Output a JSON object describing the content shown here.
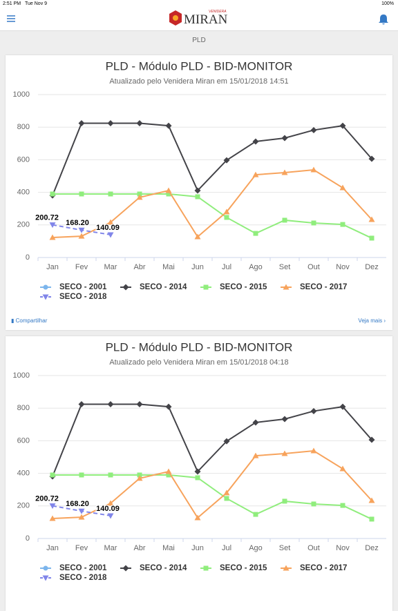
{
  "status_bar": {
    "time": "2:51 PM",
    "date": "Tue Nov 9",
    "battery": "100%"
  },
  "header": {
    "brand": "MIRAN",
    "brand_top": "VENIDERA"
  },
  "section": "PLD",
  "card_footer": {
    "share": "Compartilhar",
    "more": "Veja mais"
  },
  "chart_data": [
    {
      "type": "line",
      "title": "PLD - Módulo PLD - BID-MONITOR",
      "subtitle": "Atualizado pelo Venidera Miran em 15/01/2018 14:51",
      "categories": [
        "Jan",
        "Fev",
        "Mar",
        "Abr",
        "Mai",
        "Jun",
        "Jul",
        "Ago",
        "Set",
        "Out",
        "Nov",
        "Dez"
      ],
      "ylim": [
        0,
        1000
      ],
      "yticks": [
        0,
        200,
        400,
        600,
        800,
        1000
      ],
      "grid": true,
      "series": [
        {
          "name": "SECO - 2001",
          "color": "#7cb5ec",
          "marker": "circle",
          "values": [
            null,
            null,
            null,
            null,
            null,
            null,
            null,
            null,
            null,
            null,
            null,
            null
          ]
        },
        {
          "name": "SECO - 2014",
          "color": "#434348",
          "marker": "diamond",
          "values": [
            381,
            824,
            824,
            824,
            809,
            411,
            597,
            712,
            733,
            782,
            809,
            606
          ]
        },
        {
          "name": "SECO - 2015",
          "color": "#90ed7d",
          "marker": "square",
          "values": [
            390,
            390,
            390,
            390,
            390,
            373,
            246,
            148,
            229,
            212,
            203,
            119
          ]
        },
        {
          "name": "SECO - 2017",
          "color": "#f7a35c",
          "marker": "triangle",
          "values": [
            123,
            131,
            216,
            369,
            411,
            127,
            280,
            508,
            521,
            538,
            428,
            233
          ]
        },
        {
          "name": "SECO - 2018",
          "color": "#8085e9",
          "marker": "triangle-down",
          "dash": true,
          "values": [
            200.72,
            168.2,
            140.09,
            null,
            null,
            null,
            null,
            null,
            null,
            null,
            null,
            null
          ],
          "value_labels": [
            "200.72",
            "168.20",
            "140.09",
            null,
            null,
            null,
            null,
            null,
            null,
            null,
            null,
            null
          ]
        }
      ]
    },
    {
      "type": "line",
      "title": "PLD - Módulo PLD - BID-MONITOR",
      "subtitle": "Atualizado pelo Venidera Miran em 15/01/2018 04:18",
      "categories": [
        "Jan",
        "Fev",
        "Mar",
        "Abr",
        "Mai",
        "Jun",
        "Jul",
        "Ago",
        "Set",
        "Out",
        "Nov",
        "Dez"
      ],
      "ylim": [
        0,
        1000
      ],
      "yticks": [
        0,
        200,
        400,
        600,
        800,
        1000
      ],
      "grid": true,
      "series": [
        {
          "name": "SECO - 2001",
          "color": "#7cb5ec",
          "marker": "circle",
          "values": [
            null,
            null,
            null,
            null,
            null,
            null,
            null,
            null,
            null,
            null,
            null,
            null
          ]
        },
        {
          "name": "SECO - 2014",
          "color": "#434348",
          "marker": "diamond",
          "values": [
            381,
            824,
            824,
            824,
            809,
            411,
            597,
            712,
            733,
            782,
            809,
            606
          ]
        },
        {
          "name": "SECO - 2015",
          "color": "#90ed7d",
          "marker": "square",
          "values": [
            390,
            390,
            390,
            390,
            390,
            373,
            246,
            148,
            229,
            212,
            203,
            119
          ]
        },
        {
          "name": "SECO - 2017",
          "color": "#f7a35c",
          "marker": "triangle",
          "values": [
            123,
            131,
            216,
            369,
            411,
            127,
            280,
            508,
            521,
            538,
            428,
            233
          ]
        },
        {
          "name": "SECO - 2018",
          "color": "#8085e9",
          "marker": "triangle-down",
          "dash": true,
          "values": [
            200.72,
            168.2,
            140.09,
            null,
            null,
            null,
            null,
            null,
            null,
            null,
            null,
            null
          ],
          "value_labels": [
            "200.72",
            "168.20",
            "140.09",
            null,
            null,
            null,
            null,
            null,
            null,
            null,
            null,
            null
          ]
        }
      ]
    }
  ]
}
